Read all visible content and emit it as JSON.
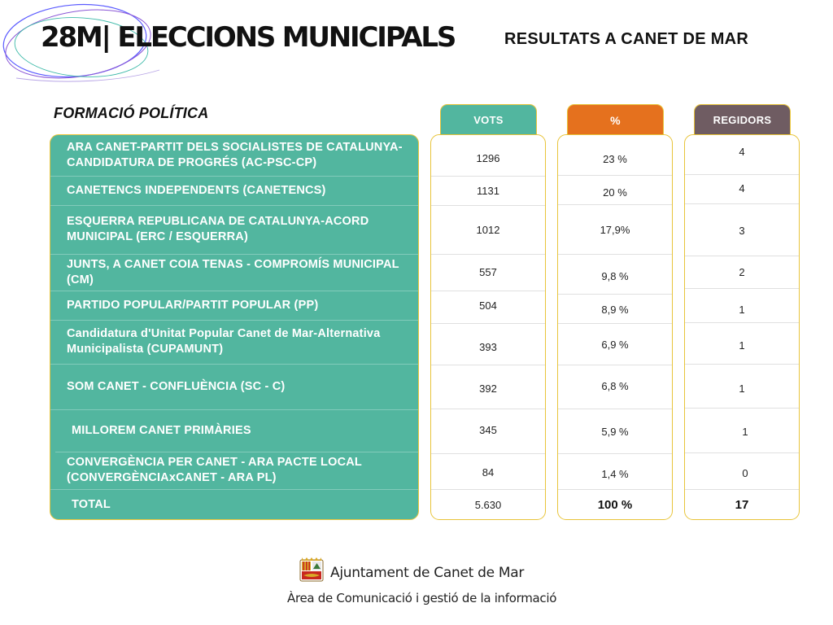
{
  "header": {
    "title": "28M| ELECCIONS MUNICIPALS",
    "subtitle": "RESULTATS A CANET DE MAR"
  },
  "table": {
    "party_column_label": "FORMACIÓ POLÍTICA",
    "headers": {
      "votes": "VOTS",
      "percent": "%",
      "seats": "REGIDORS"
    },
    "rows": [
      {
        "party": "ARA CANET-PARTIT DELS SOCIALISTES DE CATALUNYA-CANDIDATURA DE PROGRÉS (AC-PSC-CP)",
        "votes": "1296",
        "percent": "23 %",
        "seats": "4"
      },
      {
        "party": "CANETENCS INDEPENDENTS (CANETENCS)",
        "votes": "1131",
        "percent": "20 %",
        "seats": "4"
      },
      {
        "party": "ESQUERRA REPUBLICANA DE CATALUNYA-ACORD MUNICIPAL (ERC / ESQUERRA)",
        "votes": "1012",
        "percent": "17,9%",
        "seats": "3"
      },
      {
        "party": "JUNTS, A CANET COIA TENAS - COMPROMÍS MUNICIPAL (CM)",
        "votes": "557",
        "percent": "9,8 %",
        "seats": "2"
      },
      {
        "party": "PARTIDO POPULAR/PARTIT POPULAR (PP)",
        "votes": "504",
        "percent": "8,9 %",
        "seats": "1"
      },
      {
        "party": "Candidatura d'Unitat Popular Canet de Mar-Alternativa Municipalista (CUPAMUNT)",
        "votes": "393",
        "percent": "6,9 %",
        "seats": "1"
      },
      {
        "party": "SOM CANET - CONFLUÈNCIA (SC - C)",
        "votes": "392",
        "percent": "6,8 %",
        "seats": "1"
      },
      {
        "party": "MILLOREM CANET PRIMÀRIES",
        "votes": "345",
        "percent": "5,9 %",
        "seats": "1"
      },
      {
        "party": "CONVERGÈNCIA PER CANET - ARA PACTE LOCAL (CONVERGÈNCIAxCANET - ARA PL)",
        "votes": "84",
        "percent": "1,4 %",
        "seats": "0"
      }
    ],
    "total": {
      "label": "TOTAL",
      "votes": "5.630",
      "percent": "100 %",
      "seats": "17"
    }
  },
  "footer": {
    "organization": "Ajuntament de Canet de Mar",
    "department": "Àrea de Comunicació i gestió de la informació"
  },
  "colors": {
    "teal": "#52b69f",
    "orange": "#e5711e",
    "mauve": "#6f5c62",
    "gold_border": "#e8c43a"
  },
  "icons": {
    "logo": "coat-of-arms-icon",
    "decoration": "swirl-lines-decoration"
  }
}
